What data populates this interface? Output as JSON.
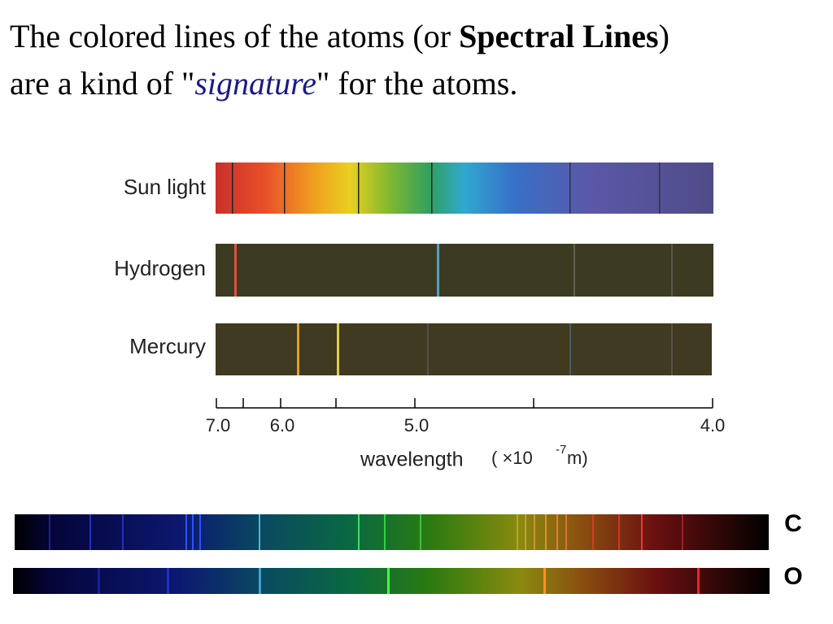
{
  "title": {
    "line1": {
      "text": "The colored lines of the atoms (or ",
      "bold": "Spectral Lines",
      "end": ")"
    },
    "line2": {
      "text": "are a kind of \"",
      "italic": "signature",
      "end": "\" for the atoms."
    }
  },
  "spectra": {
    "labels": [
      "Sun light",
      "Hydrogen",
      "Mercury"
    ],
    "axis_ticks": [
      "7.0",
      "6.0",
      "5.0",
      "4.0"
    ],
    "axis_label": "wavelength",
    "unit_prefix": "( ×10",
    "unit_exponent": "-7",
    "unit_suffix": " m)"
  },
  "elements": [
    "C",
    "O"
  ]
}
